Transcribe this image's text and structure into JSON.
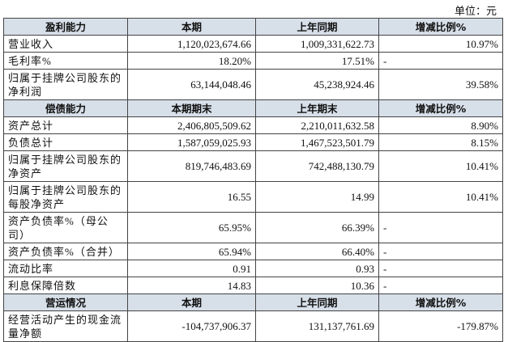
{
  "unit": "单位：元",
  "sections": [
    {
      "header": [
        "盈利能力",
        "本期",
        "上年同期",
        "增减比例%"
      ],
      "rows": [
        [
          "营业收入",
          "1,120,023,674.66",
          "1,009,331,622.73",
          "10.97%"
        ],
        [
          "毛利率%",
          "18.20%",
          "17.51%",
          "-"
        ],
        [
          "归属于挂牌公司股东的净利润",
          "63,144,048.46",
          "45,238,924.46",
          "39.58%"
        ]
      ]
    },
    {
      "header": [
        "偿债能力",
        "本期期末",
        "上年期末",
        "增减比例%"
      ],
      "rows": [
        [
          "资产总计",
          "2,406,805,509.62",
          "2,210,011,632.58",
          "8.90%"
        ],
        [
          "负债总计",
          "1,587,059,025.93",
          "1,467,523,501.79",
          "8.15%"
        ],
        [
          "归属于挂牌公司股东的净资产",
          "819,746,483.69",
          "742,488,130.79",
          "10.41%"
        ],
        [
          "归属于挂牌公司股东的每股净资产",
          "16.55",
          "14.99",
          "10.41%"
        ],
        [
          "资产负债率%（母公司）",
          "65.95%",
          "66.39%",
          "-"
        ],
        [
          "资产负债率%（合并）",
          "65.94%",
          "66.40%",
          "-"
        ],
        [
          "流动比率",
          "0.91",
          "0.93",
          "-"
        ],
        [
          "利息保障倍数",
          "14.83",
          "10.36",
          "-"
        ]
      ]
    },
    {
      "header": [
        "营运情况",
        "本期",
        "上年同期",
        "增减比例%"
      ],
      "rows": [
        [
          "经营活动产生的现金流量净额",
          "-104,737,906.37",
          "131,137,761.69",
          "-179.87%"
        ]
      ]
    }
  ]
}
